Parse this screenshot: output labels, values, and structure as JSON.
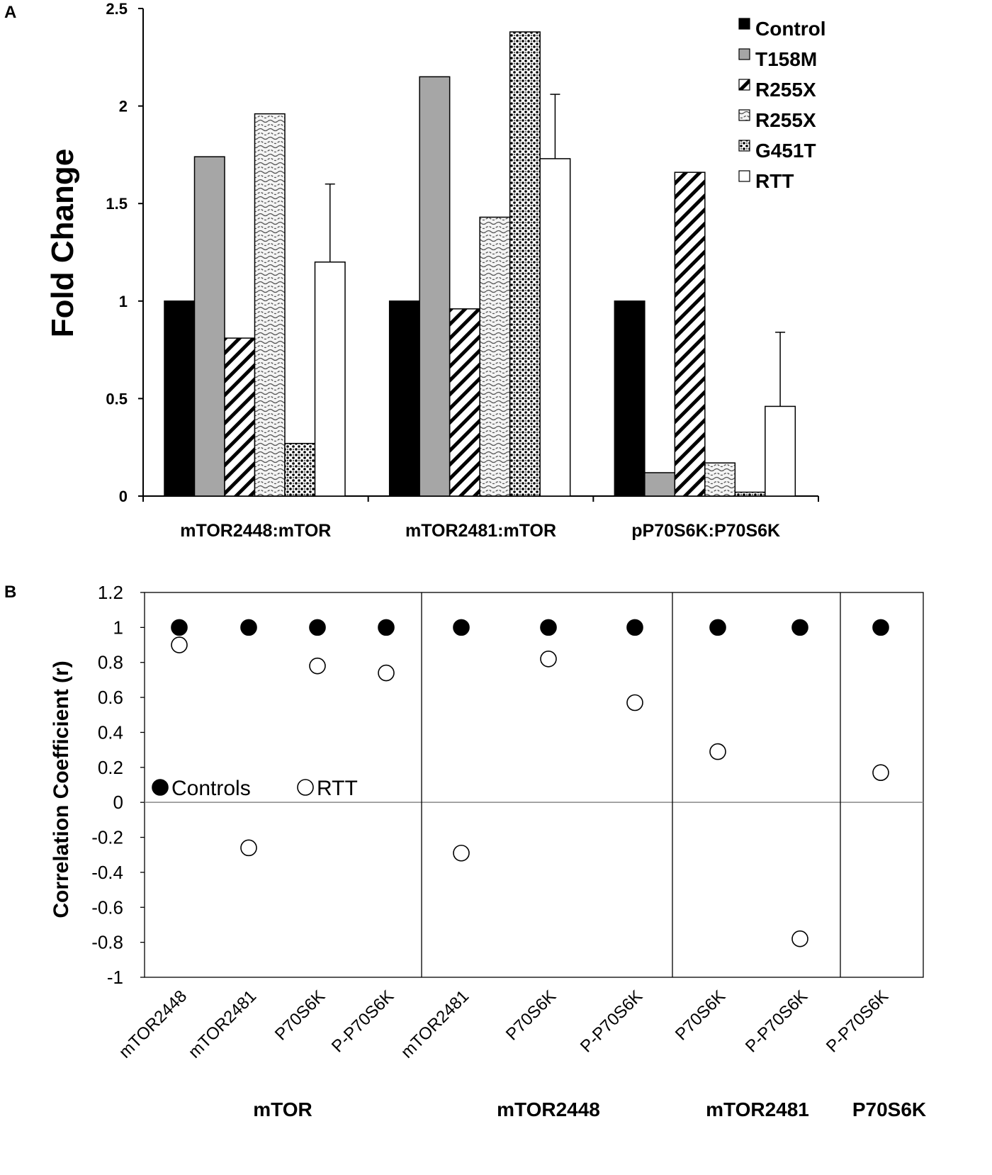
{
  "panel_a_label": "A",
  "panel_b_label": "B",
  "chart_data": [
    {
      "type": "bar",
      "ylabel": "Fold Change",
      "xlabel": "",
      "ylim": [
        0,
        2.5
      ],
      "yticks": [
        "0",
        "0.5",
        "1",
        "1.5",
        "2",
        "2.5"
      ],
      "categories": [
        "mTOR2448:mTOR",
        "mTOR2481:mTOR",
        "pP70S6K:P70S6K"
      ],
      "legend_position": "top-right",
      "series": [
        {
          "name": "Control",
          "pattern": "solid-black",
          "values": [
            1.0,
            1.0,
            1.0
          ]
        },
        {
          "name": "T158M",
          "pattern": "solid-gray",
          "values": [
            1.74,
            2.15,
            0.12
          ]
        },
        {
          "name": "R255X",
          "pattern": "diagonal",
          "values": [
            0.81,
            0.96,
            1.66
          ]
        },
        {
          "name": "R255X",
          "pattern": "wavy",
          "values": [
            1.96,
            1.43,
            0.17
          ]
        },
        {
          "name": "G451T",
          "pattern": "dots",
          "values": [
            0.27,
            2.38,
            0.02
          ]
        },
        {
          "name": "RTT",
          "pattern": "white",
          "values": [
            1.2,
            1.73,
            0.46
          ],
          "error": [
            0.4,
            0.33,
            0.38
          ]
        }
      ]
    },
    {
      "type": "scatter",
      "ylabel": "Correlation Coefficient (r)",
      "xlabel": "",
      "ylim": [
        -1,
        1.2
      ],
      "yticks": [
        "-1",
        "-0.8",
        "-0.6",
        "-0.4",
        "-0.2",
        "0",
        "0.2",
        "0.4",
        "0.6",
        "0.8",
        "1",
        "1.2"
      ],
      "x": [
        "mTOR2448",
        "mTOR2481",
        "P70S6K",
        "P-P70S6K",
        "mTOR2481",
        "P70S6K",
        "P-P70S6K",
        "P70S6K",
        "P-P70S6K",
        "P-P70S6K"
      ],
      "groups": [
        {
          "label": "mTOR",
          "count": 4
        },
        {
          "label": "mTOR2448",
          "count": 3
        },
        {
          "label": "mTOR2481",
          "count": 2
        },
        {
          "label": "P70S6K",
          "count": 1
        }
      ],
      "legend_position": "middle-left",
      "series": [
        {
          "name": "Controls",
          "marker": "filled-circle",
          "values": [
            1,
            1,
            1,
            1,
            1,
            1,
            1,
            1,
            1,
            1
          ]
        },
        {
          "name": "RTT",
          "marker": "open-circle",
          "values": [
            0.9,
            -0.26,
            0.78,
            0.74,
            -0.29,
            0.82,
            0.57,
            0.29,
            -0.78,
            0.17
          ]
        }
      ]
    }
  ]
}
